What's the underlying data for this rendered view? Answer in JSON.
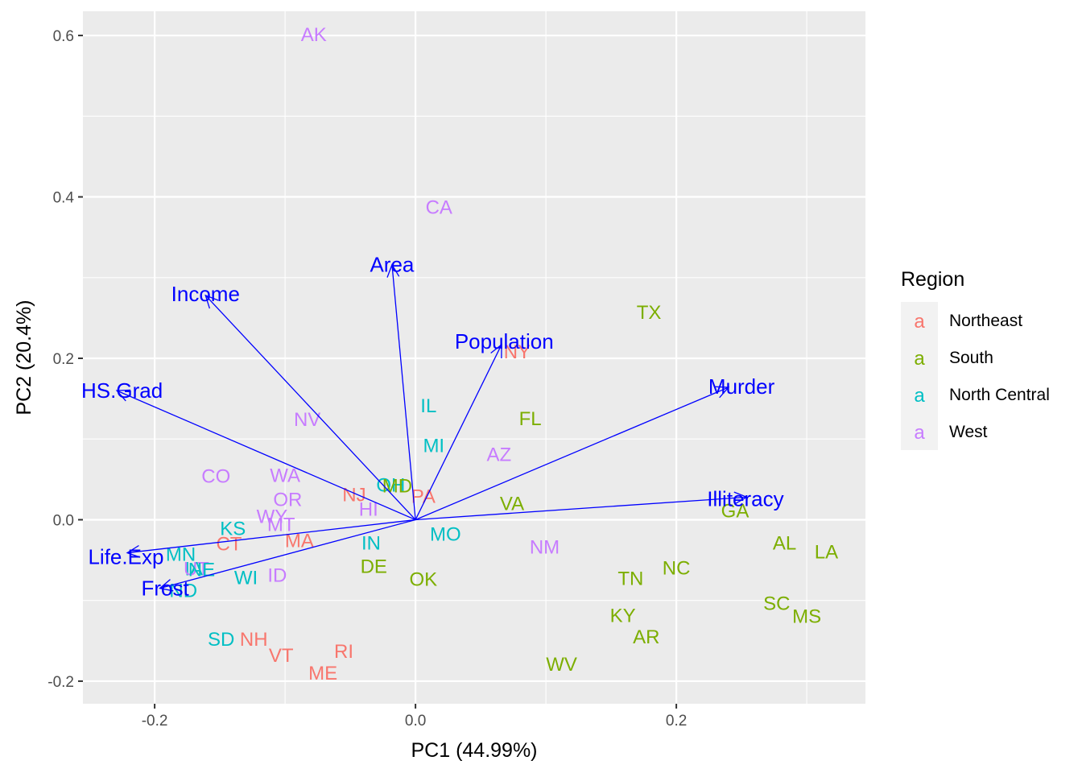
{
  "chart_data": {
    "type": "scatter",
    "xlabel": "PC1 (44.99%)",
    "ylabel": "PC2 (20.4%)",
    "xlim": [
      -0.255,
      0.345
    ],
    "ylim": [
      -0.228,
      0.63
    ],
    "x_ticks": [
      -0.2,
      0.0,
      0.2
    ],
    "y_ticks": [
      -0.2,
      0.0,
      0.2,
      0.4,
      0.6
    ],
    "x_tick_labels": [
      "-0.2",
      "0.0",
      "0.2"
    ],
    "y_tick_labels": [
      "-0.2",
      "0.0",
      "0.2",
      "0.4",
      "0.6"
    ],
    "grid": true,
    "legend": {
      "title": "Region",
      "placement": "right",
      "glyph": "a",
      "entries": [
        {
          "name": "Northeast",
          "color": "#F8766D"
        },
        {
          "name": "South",
          "color": "#7CAE00"
        },
        {
          "name": "North Central",
          "color": "#00BFC4"
        },
        {
          "name": "West",
          "color": "#C77CFF"
        }
      ]
    },
    "points": [
      {
        "label": "AK",
        "x": -0.078,
        "y": 0.601,
        "region": "West"
      },
      {
        "label": "CA",
        "x": 0.018,
        "y": 0.387,
        "region": "West"
      },
      {
        "label": "TX",
        "x": 0.179,
        "y": 0.257,
        "region": "South"
      },
      {
        "label": "NY",
        "x": 0.078,
        "y": 0.208,
        "region": "Northeast"
      },
      {
        "label": "IL",
        "x": 0.01,
        "y": 0.141,
        "region": "North Central"
      },
      {
        "label": "FL",
        "x": 0.088,
        "y": 0.125,
        "region": "South"
      },
      {
        "label": "NV",
        "x": -0.083,
        "y": 0.124,
        "region": "West"
      },
      {
        "label": "MI",
        "x": 0.014,
        "y": 0.092,
        "region": "North Central"
      },
      {
        "label": "AZ",
        "x": 0.064,
        "y": 0.081,
        "region": "West"
      },
      {
        "label": "CO",
        "x": -0.153,
        "y": 0.054,
        "region": "West"
      },
      {
        "label": "WA",
        "x": -0.1,
        "y": 0.055,
        "region": "West"
      },
      {
        "label": "OH",
        "x": -0.019,
        "y": 0.043,
        "region": "North Central"
      },
      {
        "label": "MD",
        "x": -0.014,
        "y": 0.042,
        "region": "South"
      },
      {
        "label": "NJ",
        "x": -0.047,
        "y": 0.031,
        "region": "Northeast"
      },
      {
        "label": "PA",
        "x": 0.006,
        "y": 0.029,
        "region": "Northeast"
      },
      {
        "label": "OR",
        "x": -0.098,
        "y": 0.025,
        "region": "West"
      },
      {
        "label": "VA",
        "x": 0.074,
        "y": 0.02,
        "region": "South"
      },
      {
        "label": "HI",
        "x": -0.036,
        "y": 0.013,
        "region": "West"
      },
      {
        "label": "GA",
        "x": 0.245,
        "y": 0.011,
        "region": "South"
      },
      {
        "label": "WY",
        "x": -0.11,
        "y": 0.004,
        "region": "West"
      },
      {
        "label": "MT",
        "x": -0.103,
        "y": -0.006,
        "region": "West"
      },
      {
        "label": "KS",
        "x": -0.14,
        "y": -0.011,
        "region": "North Central"
      },
      {
        "label": "MO",
        "x": 0.023,
        "y": -0.018,
        "region": "North Central"
      },
      {
        "label": "MA",
        "x": -0.089,
        "y": -0.026,
        "region": "Northeast"
      },
      {
        "label": "CT",
        "x": -0.143,
        "y": -0.03,
        "region": "Northeast"
      },
      {
        "label": "AL",
        "x": 0.283,
        "y": -0.029,
        "region": "South"
      },
      {
        "label": "IN",
        "x": -0.034,
        "y": -0.029,
        "region": "North Central"
      },
      {
        "label": "NM",
        "x": 0.099,
        "y": -0.034,
        "region": "West"
      },
      {
        "label": "LA",
        "x": 0.315,
        "y": -0.04,
        "region": "South"
      },
      {
        "label": "MN",
        "x": -0.18,
        "y": -0.043,
        "region": "North Central"
      },
      {
        "label": "DE",
        "x": -0.032,
        "y": -0.058,
        "region": "South"
      },
      {
        "label": "NC",
        "x": 0.2,
        "y": -0.06,
        "region": "South"
      },
      {
        "label": "IA",
        "x": -0.17,
        "y": -0.061,
        "region": "North Central"
      },
      {
        "label": "UT",
        "x": -0.168,
        "y": -0.061,
        "region": "West"
      },
      {
        "label": "NE",
        "x": -0.164,
        "y": -0.062,
        "region": "North Central"
      },
      {
        "label": "ID",
        "x": -0.106,
        "y": -0.069,
        "region": "West"
      },
      {
        "label": "WI",
        "x": -0.13,
        "y": -0.072,
        "region": "North Central"
      },
      {
        "label": "TN",
        "x": 0.165,
        "y": -0.073,
        "region": "South"
      },
      {
        "label": "OK",
        "x": 0.006,
        "y": -0.074,
        "region": "South"
      },
      {
        "label": "ND",
        "x": -0.178,
        "y": -0.088,
        "region": "North Central"
      },
      {
        "label": "SC",
        "x": 0.277,
        "y": -0.104,
        "region": "South"
      },
      {
        "label": "MS",
        "x": 0.3,
        "y": -0.12,
        "region": "South"
      },
      {
        "label": "KY",
        "x": 0.159,
        "y": -0.119,
        "region": "South"
      },
      {
        "label": "AR",
        "x": 0.177,
        "y": -0.145,
        "region": "South"
      },
      {
        "label": "SD",
        "x": -0.149,
        "y": -0.148,
        "region": "North Central"
      },
      {
        "label": "NH",
        "x": -0.124,
        "y": -0.148,
        "region": "Northeast"
      },
      {
        "label": "RI",
        "x": -0.055,
        "y": -0.163,
        "region": "Northeast"
      },
      {
        "label": "VT",
        "x": -0.103,
        "y": -0.168,
        "region": "Northeast"
      },
      {
        "label": "WV",
        "x": 0.112,
        "y": -0.179,
        "region": "South"
      },
      {
        "label": "ME",
        "x": -0.071,
        "y": -0.19,
        "region": "Northeast"
      }
    ],
    "loadings": [
      {
        "name": "Population",
        "x": 0.066,
        "y": 0.217,
        "lx": 0.068,
        "ly": 0.221
      },
      {
        "name": "Income",
        "x": -0.161,
        "y": 0.278,
        "lx": -0.161,
        "ly": 0.28
      },
      {
        "name": "Illiteracy",
        "x": 0.254,
        "y": 0.028,
        "lx": 0.253,
        "ly": 0.026
      },
      {
        "name": "Life.Exp",
        "x": -0.221,
        "y": -0.041,
        "lx": -0.222,
        "ly": -0.046
      },
      {
        "name": "Murder",
        "x": 0.24,
        "y": 0.164,
        "lx": 0.25,
        "ly": 0.165
      },
      {
        "name": "HS.Grad",
        "x": -0.229,
        "y": 0.16,
        "lx": -0.225,
        "ly": 0.16
      },
      {
        "name": "Frost",
        "x": -0.196,
        "y": -0.085,
        "lx": -0.192,
        "ly": -0.085
      },
      {
        "name": "Area",
        "x": -0.018,
        "y": 0.316,
        "lx": -0.018,
        "ly": 0.316
      }
    ]
  }
}
